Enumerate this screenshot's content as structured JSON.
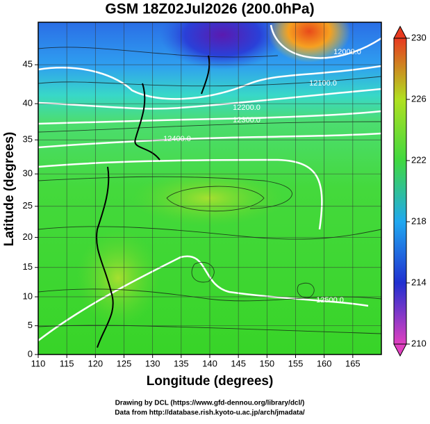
{
  "chart_data": {
    "type": "heatmap",
    "title": "GSM 18Z02Jul2026 (200.0hPa)",
    "xlabel": "Longitude (degrees)",
    "ylabel": "Latitude  (degrees)",
    "xlim": [
      110,
      170
    ],
    "xticks": [
      110,
      115,
      120,
      125,
      130,
      135,
      140,
      145,
      150,
      155,
      160,
      165
    ],
    "ylim": [
      0,
      50
    ],
    "yticks": [
      0,
      5,
      10,
      15,
      20,
      25,
      30,
      35,
      40,
      45
    ],
    "grid": true,
    "colorbar": {
      "lim": [
        210,
        230
      ],
      "ticks": [
        210,
        214,
        218,
        222,
        226,
        230
      ]
    },
    "contour_labels": [
      "12000.0",
      "12100.0",
      "12200.0",
      "12300.0",
      "12400.0",
      "12500.0"
    ],
    "credits": [
      "Drawing by DCL (https://www.gfd-dennou.org/library/dcl/)",
      "Data from http://database.rish.kyoto-u.ac.jp/arch/jmadata/"
    ]
  }
}
